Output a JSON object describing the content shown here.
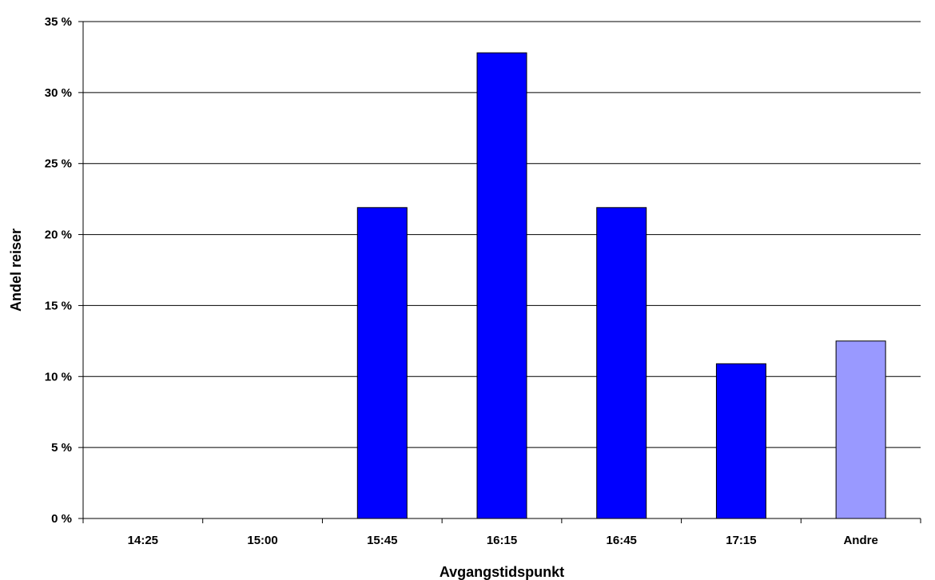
{
  "chart_data": {
    "type": "bar",
    "title": "",
    "xlabel": "Avgangstidspunkt",
    "ylabel": "Andel reiser",
    "categories": [
      "14:25",
      "15:00",
      "15:45",
      "16:15",
      "16:45",
      "17:15",
      "Andre"
    ],
    "values": [
      0,
      0,
      21.9,
      32.8,
      21.9,
      10.9,
      12.5
    ],
    "bar_colors": [
      "#0000FF",
      "#0000FF",
      "#0000FF",
      "#0000FF",
      "#0000FF",
      "#0000FF",
      "#9999FF"
    ],
    "ylim": [
      0,
      35
    ],
    "yticks": [
      0,
      5,
      10,
      15,
      20,
      25,
      30,
      35
    ],
    "ytick_labels": [
      "0 %",
      "5 %",
      "10 %",
      "15 %",
      "20 %",
      "25 %",
      "30 %",
      "35 %"
    ],
    "grid": true,
    "legend": "none"
  }
}
